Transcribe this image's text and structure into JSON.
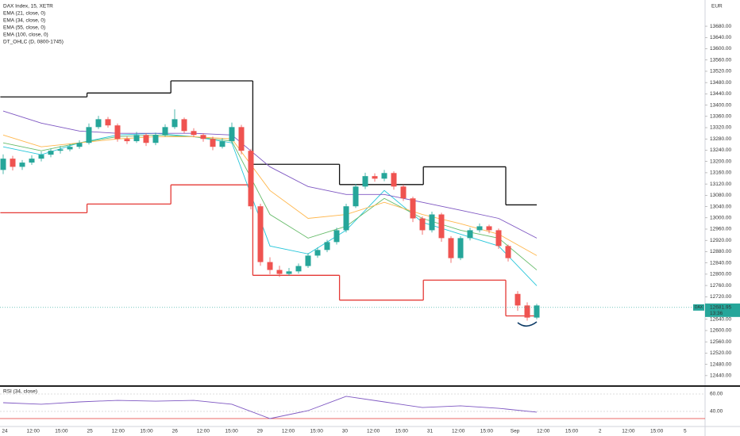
{
  "chart_data": {
    "type": "candlestick",
    "title": "DAX Index, 15, XETR",
    "currency": "EUR",
    "up_color": "#26a69a",
    "down_color": "#ef5350",
    "ylim": [
      12403,
      13773
    ],
    "yticks": [
      {
        "value": 13680,
        "label": "13680.00"
      },
      {
        "value": 13640,
        "label": "13640.00"
      },
      {
        "value": 13600,
        "label": "13600.00"
      },
      {
        "value": 13560,
        "label": "13560.00"
      },
      {
        "value": 13520,
        "label": "13520.00"
      },
      {
        "value": 13480,
        "label": "13480.00"
      },
      {
        "value": 13440,
        "label": "13440.00"
      },
      {
        "value": 13400,
        "label": "13400.00"
      },
      {
        "value": 13360,
        "label": "13360.00"
      },
      {
        "value": 13320,
        "label": "13320.00"
      },
      {
        "value": 13280,
        "label": "13280.00"
      },
      {
        "value": 13240,
        "label": "13240.00"
      },
      {
        "value": 13200,
        "label": "13200.00"
      },
      {
        "value": 13160,
        "label": "13160.00"
      },
      {
        "value": 13120,
        "label": "13120.00"
      },
      {
        "value": 13080,
        "label": "13080.00"
      },
      {
        "value": 13040,
        "label": "13040.00"
      },
      {
        "value": 13000,
        "label": "13000.00"
      },
      {
        "value": 12960,
        "label": "12960.00"
      },
      {
        "value": 12920,
        "label": "12920.00"
      },
      {
        "value": 12880,
        "label": "12880.00"
      },
      {
        "value": 12840,
        "label": "12840.00"
      },
      {
        "value": 12800,
        "label": "12800.00"
      },
      {
        "value": 12760,
        "label": "12760.00"
      },
      {
        "value": 12720,
        "label": "12720.00"
      },
      {
        "value": 12640,
        "label": "12640.00"
      },
      {
        "value": 12600,
        "label": "12600.00"
      },
      {
        "value": 12560,
        "label": "12560.00"
      },
      {
        "value": 12520,
        "label": "12520.00"
      },
      {
        "value": 12480,
        "label": "12480.00"
      },
      {
        "value": 12440,
        "label": "12440.00"
      }
    ],
    "x_labels": [
      "24",
      "12:00",
      "15:00",
      "25",
      "12:00",
      "15:00",
      "26",
      "12:00",
      "15:00",
      "29",
      "12:00",
      "15:00",
      "30",
      "12:00",
      "15:00",
      "31",
      "12:00",
      "15:00",
      "Sep",
      "12:00",
      "15:00",
      "2",
      "12:00",
      "15:00",
      "5"
    ],
    "candles": [
      [
        13170,
        13225,
        13155,
        13210
      ],
      [
        13210,
        13220,
        13168,
        13181
      ],
      [
        13181,
        13205,
        13170,
        13196
      ],
      [
        13196,
        13222,
        13188,
        13210
      ],
      [
        13210,
        13235,
        13200,
        13224
      ],
      [
        13224,
        13246,
        13215,
        13238
      ],
      [
        13238,
        13255,
        13228,
        13243
      ],
      [
        13243,
        13262,
        13236,
        13252
      ],
      [
        13252,
        13275,
        13245,
        13266
      ],
      [
        13266,
        13335,
        13260,
        13322
      ],
      [
        13322,
        13362,
        13315,
        13350
      ],
      [
        13350,
        13358,
        13320,
        13328
      ],
      [
        13328,
        13335,
        13270,
        13280
      ],
      [
        13280,
        13290,
        13262,
        13272
      ],
      [
        13272,
        13305,
        13266,
        13294
      ],
      [
        13294,
        13300,
        13255,
        13266
      ],
      [
        13266,
        13302,
        13258,
        13294
      ],
      [
        13294,
        13332,
        13288,
        13322
      ],
      [
        13322,
        13385,
        13315,
        13350
      ],
      [
        13350,
        13356,
        13300,
        13308
      ],
      [
        13308,
        13318,
        13286,
        13294
      ],
      [
        13294,
        13300,
        13270,
        13280
      ],
      [
        13280,
        13288,
        13240,
        13252
      ],
      [
        13252,
        13283,
        13246,
        13272
      ],
      [
        13272,
        13338,
        13265,
        13322
      ],
      [
        13322,
        13330,
        13225,
        13238
      ],
      [
        13238,
        13245,
        13030,
        13041
      ],
      [
        13041,
        13050,
        12830,
        12843
      ],
      [
        12843,
        12860,
        12800,
        12815
      ],
      [
        12815,
        12830,
        12790,
        12801
      ],
      [
        12801,
        12822,
        12795,
        12810
      ],
      [
        12810,
        12838,
        12802,
        12829
      ],
      [
        12829,
        12875,
        12822,
        12866
      ],
      [
        12866,
        12895,
        12858,
        12886
      ],
      [
        12886,
        12922,
        12878,
        12914
      ],
      [
        12914,
        12965,
        12905,
        12956
      ],
      [
        12956,
        13050,
        12948,
        13041
      ],
      [
        13041,
        13120,
        13035,
        13111
      ],
      [
        13111,
        13160,
        13102,
        13148
      ],
      [
        13148,
        13158,
        13128,
        13139
      ],
      [
        13139,
        13170,
        13130,
        13159
      ],
      [
        13159,
        13165,
        13100,
        13111
      ],
      [
        13111,
        13118,
        13060,
        13069
      ],
      [
        13069,
        13075,
        12985,
        12998
      ],
      [
        12998,
        13005,
        12940,
        12956
      ],
      [
        12956,
        13022,
        12948,
        13012
      ],
      [
        13012,
        13018,
        12915,
        12928
      ],
      [
        12928,
        12935,
        12840,
        12857
      ],
      [
        12857,
        12935,
        12850,
        12928
      ],
      [
        12928,
        12965,
        12920,
        12956
      ],
      [
        12956,
        12980,
        12948,
        12970
      ],
      [
        12970,
        12976,
        12945,
        12956
      ],
      [
        12956,
        12962,
        12890,
        12900
      ],
      [
        12900,
        12905,
        12845,
        12857
      ],
      [
        12730,
        12740,
        12670,
        12689
      ],
      [
        12689,
        12700,
        12635,
        12646
      ],
      [
        12646,
        12695,
        12640,
        12689
      ]
    ],
    "line_x": [
      0,
      4,
      8,
      12,
      16,
      20,
      24,
      28,
      32,
      36,
      40,
      44,
      48,
      52,
      56
    ],
    "emas": [
      {
        "name": "EMA (21, close, 0)",
        "color": "#26c6da",
        "values": [
          13252,
          13224,
          13266,
          13294,
          13300,
          13288,
          13266,
          12900,
          12872,
          12956,
          13097,
          12984,
          12942,
          12900,
          12759
        ]
      },
      {
        "name": "EMA (34, close, 0)",
        "color": "#66bb6a",
        "values": [
          13266,
          13238,
          13266,
          13288,
          13294,
          13288,
          13272,
          13012,
          12928,
          12970,
          13069,
          12998,
          12956,
          12928,
          12815
        ]
      },
      {
        "name": "EMA (55, close, 0)",
        "color": "#ffb74d",
        "values": [
          13294,
          13252,
          13266,
          13280,
          13288,
          13288,
          13280,
          13097,
          12998,
          13012,
          13055,
          13012,
          12979,
          12942,
          12866
        ]
      },
      {
        "name": "EMA (100, close, 0)",
        "color": "#7e57c2",
        "values": [
          13379,
          13336,
          13308,
          13300,
          13300,
          13300,
          13294,
          13181,
          13111,
          13083,
          13083,
          13055,
          13027,
          12998,
          12928
        ]
      }
    ],
    "dt_ohlc": {
      "name": "DT_OHLC (D, 0800-1745)",
      "x_edges": [
        -0.3,
        8.8,
        17.6,
        26.2,
        35.3,
        44.1,
        52.75,
        56
      ],
      "series": [
        {
          "color": "#111111",
          "values": [
            13429,
            13443,
            13486,
            13190,
            13118,
            13181,
            13046
          ]
        },
        {
          "color": "#e53935",
          "values": [
            13018,
            13049,
            13117,
            12796,
            12708,
            12779,
            12652
          ]
        }
      ]
    },
    "last_price": 12681.95,
    "last_tag": "DAX",
    "countdown": "13:36",
    "rsi": {
      "name": "RSI (34, close)",
      "color": "#7e57c2",
      "values": [
        50,
        48.2,
        50.9,
        52.7,
        51.8,
        52.7,
        48.2,
        31.8,
        40.9,
        57.3,
        50.9,
        44.5,
        46.4,
        43.6,
        39.1
      ],
      "ylim": [
        23.6,
        68.2
      ],
      "yticks": [
        {
          "value": 60,
          "label": "60.00"
        },
        {
          "value": 40,
          "label": "40.00"
        }
      ]
    }
  }
}
